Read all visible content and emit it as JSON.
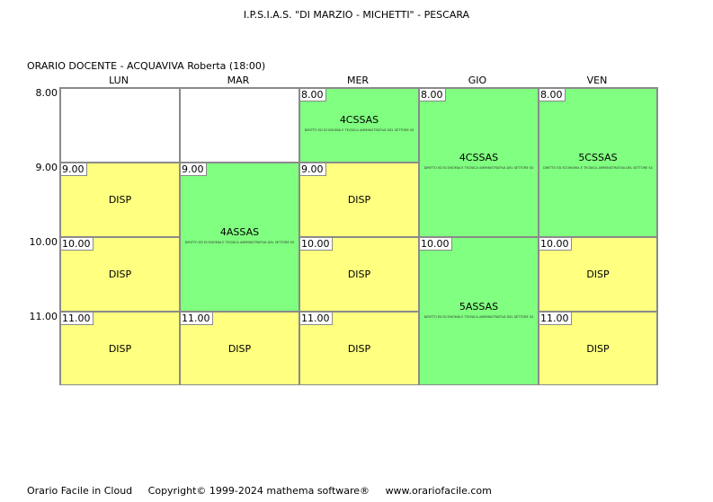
{
  "header": {
    "school": "I.P.S.I.A.S. \"DI MARZIO - MICHETTI\" - PESCARA",
    "subtitle": "ORARIO DOCENTE   -   ACQUAVIVA Roberta  (18:00)"
  },
  "days": [
    "LUN",
    "MAR",
    "MER",
    "GIO",
    "VEN"
  ],
  "hours": [
    "8.00",
    "9.00",
    "10.00",
    "11.00"
  ],
  "note": "DIRITTO ED ECONOMIA E TECNICA AMMINISTRATIVA DEL SETTORE SS",
  "cells": [
    {
      "time": "9.00",
      "name": "DISP"
    },
    {
      "time": "10.00",
      "name": "DISP"
    },
    {
      "time": "11.00",
      "name": "DISP"
    },
    {
      "time": "9.00",
      "name": "4ASSAS"
    },
    {
      "time": "11.00",
      "name": "DISP"
    },
    {
      "time": "8.00",
      "name": "4CSSAS"
    },
    {
      "time": "9.00",
      "name": "DISP"
    },
    {
      "time": "10.00",
      "name": "DISP"
    },
    {
      "time": "11.00",
      "name": "DISP"
    },
    {
      "time": "8.00",
      "name": "4CSSAS"
    },
    {
      "time": "10.00",
      "name": "5ASSAS"
    },
    {
      "time": "8.00",
      "name": "5CSSAS"
    },
    {
      "time": "10.00",
      "name": "DISP"
    },
    {
      "time": "11.00",
      "name": "DISP"
    }
  ],
  "footer": {
    "product": "Orario Facile in Cloud",
    "copyright": "Copyright© 1999-2024 mathema software®",
    "website": "www.orariofacile.com"
  }
}
